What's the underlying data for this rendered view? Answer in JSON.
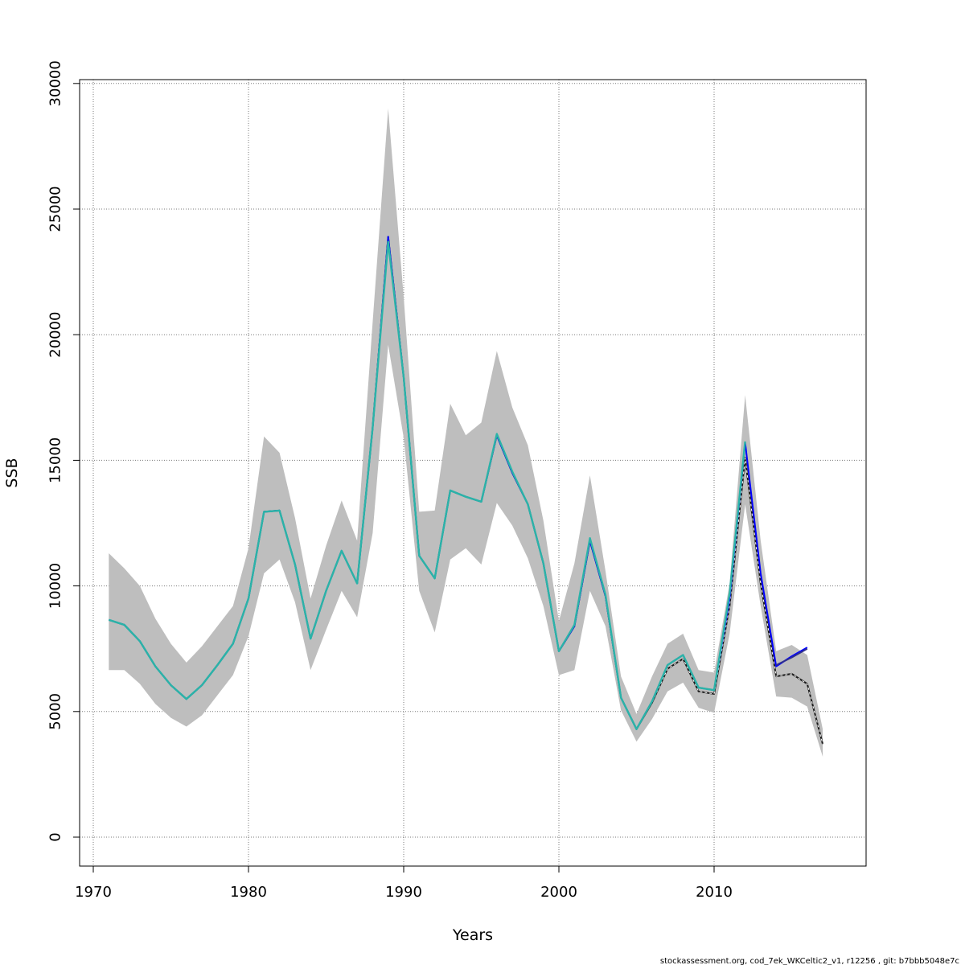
{
  "chart_data": {
    "type": "line",
    "title": "",
    "xlabel": "Years",
    "ylabel": "SSB",
    "xlim": [
      1970,
      2018
    ],
    "ylim": [
      0,
      30000
    ],
    "x_ticks": [
      1970,
      1980,
      1990,
      2000,
      2010
    ],
    "y_ticks": [
      0,
      5000,
      10000,
      15000,
      20000,
      25000,
      30000
    ],
    "grid": true,
    "band_color": "#bebebe",
    "x": [
      1971,
      1972,
      1973,
      1974,
      1975,
      1976,
      1977,
      1978,
      1979,
      1980,
      1981,
      1982,
      1983,
      1984,
      1985,
      1986,
      1987,
      1988,
      1989,
      1990,
      1991,
      1992,
      1993,
      1994,
      1995,
      1996,
      1997,
      1998,
      1999,
      2000,
      2001,
      2002,
      2003,
      2004,
      2005,
      2006,
      2007,
      2008,
      2009,
      2010,
      2011,
      2012,
      2013,
      2014,
      2015,
      2016,
      2017
    ],
    "band": {
      "upper": [
        11300,
        10700,
        10000,
        8700,
        7700,
        6950,
        7600,
        8400,
        9200,
        11500,
        15950,
        15300,
        12700,
        9500,
        11600,
        13400,
        11800,
        20500,
        29000,
        21500,
        12950,
        13000,
        17250,
        16000,
        16500,
        19350,
        17100,
        15600,
        12600,
        8600,
        10900,
        14400,
        10600,
        6400,
        4900,
        6400,
        7700,
        8100,
        6650,
        6550,
        10100,
        17600,
        11800,
        7400,
        7650,
        7250,
        4300
      ],
      "lower": [
        6650,
        6650,
        6100,
        5300,
        4750,
        4400,
        4850,
        5650,
        6450,
        8000,
        10500,
        11050,
        9350,
        6650,
        8250,
        9800,
        8750,
        12100,
        19600,
        15900,
        9800,
        8150,
        11050,
        11500,
        10850,
        13300,
        12400,
        11100,
        9200,
        6450,
        6650,
        9800,
        8400,
        5050,
        3800,
        4700,
        5800,
        6150,
        5150,
        4950,
        8100,
        13250,
        9200,
        5600,
        5550,
        5200,
        3200
      ]
    },
    "series": [
      {
        "color": "#1a1a1a",
        "values": [
          8650,
          8450,
          7800,
          6800,
          6050,
          5500,
          6050,
          6850,
          7700,
          9500,
          12950,
          13000,
          10850,
          7900,
          9800,
          11400,
          10100,
          16300,
          23900,
          18300,
          11200,
          10300,
          13800,
          13550,
          13350,
          16000,
          14500,
          13250,
          10900,
          7400,
          8400,
          11800,
          9600,
          5550,
          4300,
          5350,
          6700,
          7100,
          5800,
          5700,
          9200,
          15100,
          10100,
          6400,
          6500,
          6100,
          3700
        ]
      },
      {
        "color": "#0000ff",
        "values": [
          8650,
          8450,
          7800,
          6800,
          6050,
          5500,
          6050,
          6850,
          7700,
          9500,
          12950,
          13000,
          10850,
          7900,
          9800,
          11400,
          10100,
          16300,
          23900,
          18300,
          11200,
          10300,
          13800,
          13550,
          13350,
          16000,
          14500,
          13250,
          10900,
          7400,
          8400,
          11800,
          9600,
          5550,
          4300,
          5400,
          6850,
          7250,
          5950,
          5850,
          9500,
          15700,
          10500,
          6800,
          7200,
          7550,
          null
        ]
      },
      {
        "color": "#2e2e8f",
        "values": [
          null,
          null,
          null,
          null,
          null,
          null,
          null,
          null,
          null,
          null,
          null,
          null,
          null,
          null,
          null,
          null,
          null,
          null,
          null,
          null,
          null,
          null,
          null,
          null,
          null,
          null,
          null,
          null,
          null,
          null,
          null,
          null,
          null,
          null,
          null,
          null,
          null,
          null,
          null,
          null,
          null,
          null,
          null,
          6850,
          7150,
          7500,
          null
        ]
      },
      {
        "color": "#2bb3a8",
        "values": [
          8650,
          8450,
          7800,
          6800,
          6050,
          5500,
          6050,
          6850,
          7700,
          9500,
          12950,
          13000,
          10850,
          7900,
          9800,
          11400,
          10100,
          16300,
          23700,
          18300,
          11200,
          10300,
          13800,
          13550,
          13350,
          16050,
          14550,
          13250,
          10900,
          7400,
          8450,
          11900,
          9650,
          5550,
          4300,
          5400,
          6850,
          7250,
          5950,
          5850,
          9700,
          15750,
          null,
          null,
          null,
          null,
          null
        ]
      }
    ]
  },
  "footer": "stockassessment.org, cod_7ek_WKCeltic2_v1, r12256 , git: b7bbb5048e7c"
}
